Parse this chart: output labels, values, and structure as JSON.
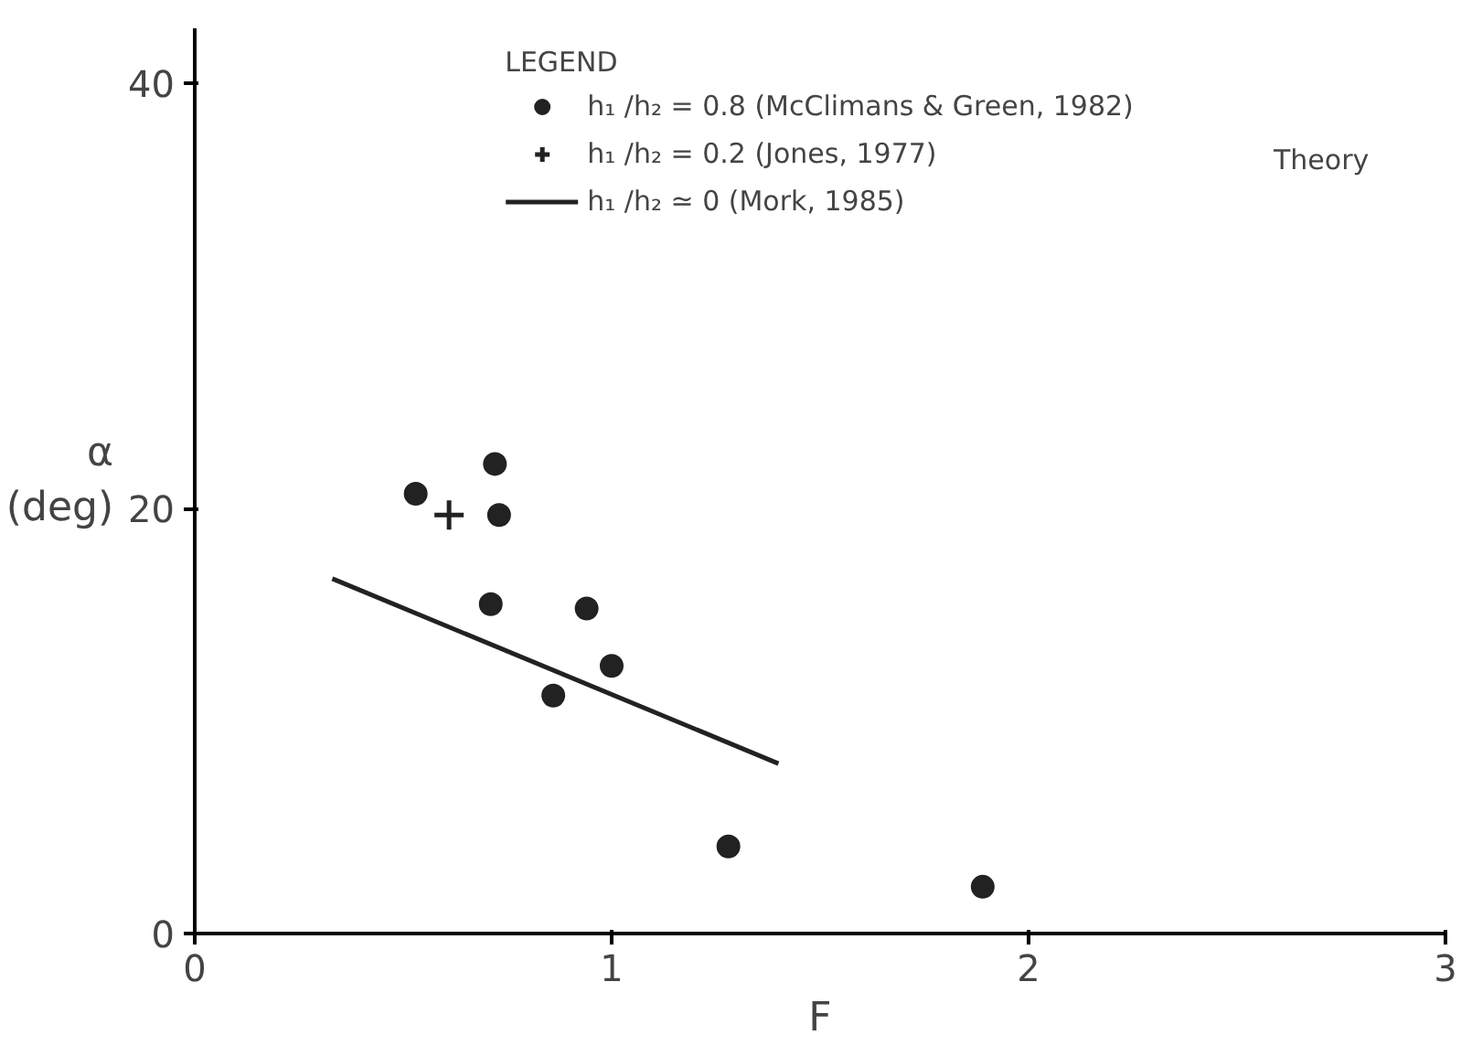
{
  "chart_data": {
    "type": "scatter",
    "xlabel": "F",
    "ylabel": "α (deg)",
    "legend_title": "LEGEND",
    "xlim": [
      0,
      3
    ],
    "ylim": [
      0,
      42.6
    ],
    "xticks": [
      0,
      1,
      2,
      3
    ],
    "yticks": [
      0,
      20,
      40
    ],
    "grid": false,
    "legend": "top",
    "annotations": [
      "Theory"
    ],
    "series": [
      {
        "name": "h₁ /h₂ = 0.8 (McClimans & Green, 1982)",
        "marker": "circle",
        "color": "#222222",
        "x": [
          0.53,
          0.72,
          0.73,
          0.71,
          0.94,
          1.0,
          0.86,
          1.28,
          1.89
        ],
        "values": [
          20.7,
          22.1,
          19.7,
          15.5,
          15.3,
          12.6,
          11.2,
          4.1,
          2.2
        ]
      },
      {
        "name": "h₁ /h₂ = 0.2 (Jones, 1977)",
        "marker": "cross",
        "color": "#222222",
        "x": [
          0.61
        ],
        "values": [
          19.7
        ]
      },
      {
        "name": "h₁ /h₂ ≃ 0 (Mork, 1985)",
        "type": "line",
        "line_style": "solid",
        "color": "#222222",
        "x": [
          0.33,
          1.4
        ],
        "values": [
          16.7,
          8.0
        ]
      }
    ]
  }
}
